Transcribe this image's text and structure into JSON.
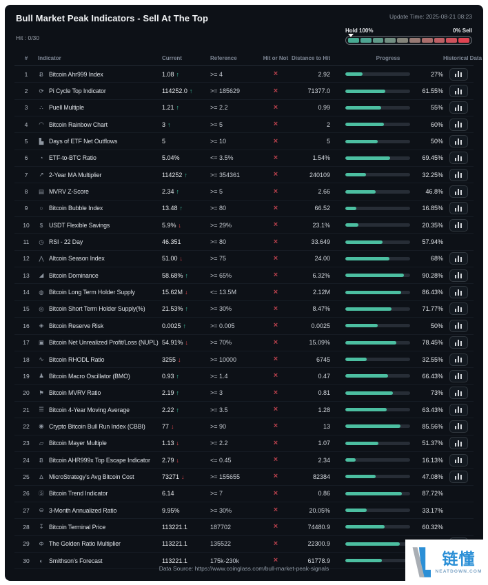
{
  "header": {
    "title": "Bull Market Peak Indicators - Sell At The Top",
    "update_time": "Update Time: 2025-08-21 08:23",
    "hit": "Hit : 0/30",
    "gauge": {
      "left_label": "Hold 100%",
      "right_label": "0% Sell",
      "marker_position_pct": 0,
      "segments": [
        "#48ab93",
        "#4ea492",
        "#609b8a",
        "#728f82",
        "#85857b",
        "#987a74",
        "#ab6e6c",
        "#bd6065",
        "#cf525c",
        "#e14351"
      ]
    }
  },
  "table": {
    "columns": [
      "#",
      "Indicator",
      "Current",
      "Reference",
      "Hit or Not",
      "Distance to Hit",
      "Progress",
      "Historical Data"
    ],
    "hit_mark": "×",
    "history_icon": "bar-chart-icon",
    "rows": [
      {
        "num": "1",
        "icon": "Ƀ",
        "name": "Bitcoin Ahr999 Index",
        "current": "1.08",
        "trend": "up",
        "reference": ">= 4",
        "hit": false,
        "distance": "2.92",
        "progress_pct": 27,
        "progress_label": "27%",
        "has_history": true
      },
      {
        "num": "2",
        "icon": "⟳",
        "name": "Pi Cycle Top Indicator",
        "current": "114252.0",
        "trend": "up",
        "reference": ">= 185629",
        "hit": false,
        "distance": "71377.0",
        "progress_pct": 61.55,
        "progress_label": "61.55%",
        "has_history": true
      },
      {
        "num": "3",
        "icon": "∴",
        "name": "Puell Multiple",
        "current": "1.21",
        "trend": "up",
        "reference": ">= 2.2",
        "hit": false,
        "distance": "0.99",
        "progress_pct": 55,
        "progress_label": "55%",
        "has_history": true
      },
      {
        "num": "4",
        "icon": "◠",
        "name": "Bitcoin Rainbow Chart",
        "current": "3",
        "trend": "up",
        "reference": ">= 5",
        "hit": false,
        "distance": "2",
        "progress_pct": 60,
        "progress_label": "60%",
        "has_history": true
      },
      {
        "num": "5",
        "icon": "▙",
        "name": "Days of ETF Net Outflows",
        "current": "5",
        "trend": "none",
        "reference": ">= 10",
        "hit": false,
        "distance": "5",
        "progress_pct": 50,
        "progress_label": "50%",
        "has_history": true
      },
      {
        "num": "6",
        "icon": "◔",
        "name": "ETF-to-BTC Ratio",
        "current": "5.04%",
        "trend": "none",
        "reference": "<= 3.5%",
        "hit": false,
        "distance": "1.54%",
        "progress_pct": 69.45,
        "progress_label": "69.45%",
        "has_history": true
      },
      {
        "num": "7",
        "icon": "↗",
        "name": "2-Year MA Multiplier",
        "current": "114252",
        "trend": "up",
        "reference": ">= 354361",
        "hit": false,
        "distance": "240109",
        "progress_pct": 32.25,
        "progress_label": "32.25%",
        "has_history": true
      },
      {
        "num": "8",
        "icon": "▤",
        "name": "MVRV Z-Score",
        "current": "2.34",
        "trend": "up",
        "reference": ">= 5",
        "hit": false,
        "distance": "2.66",
        "progress_pct": 46.8,
        "progress_label": "46.8%",
        "has_history": true
      },
      {
        "num": "9",
        "icon": "○",
        "name": "Bitcoin Bubble Index",
        "current": "13.48",
        "trend": "up",
        "reference": ">= 80",
        "hit": false,
        "distance": "66.52",
        "progress_pct": 16.85,
        "progress_label": "16.85%",
        "has_history": true
      },
      {
        "num": "10",
        "icon": "$",
        "name": "USDT Flexible Savings",
        "current": "5.9%",
        "trend": "down",
        "reference": ">= 29%",
        "hit": false,
        "distance": "23.1%",
        "progress_pct": 20.35,
        "progress_label": "20.35%",
        "has_history": true
      },
      {
        "num": "11",
        "icon": "◷",
        "name": "RSI - 22 Day",
        "current": "46.351",
        "trend": "none",
        "reference": ">= 80",
        "hit": false,
        "distance": "33.649",
        "progress_pct": 57.94,
        "progress_label": "57.94%",
        "has_history": false
      },
      {
        "num": "12",
        "icon": "⋀",
        "name": "Altcoin Season Index",
        "current": "51.00",
        "trend": "down",
        "reference": ">= 75",
        "hit": false,
        "distance": "24.00",
        "progress_pct": 68,
        "progress_label": "68%",
        "has_history": true
      },
      {
        "num": "13",
        "icon": "◢",
        "name": "Bitcoin Dominance",
        "current": "58.68%",
        "trend": "up",
        "reference": ">= 65%",
        "hit": false,
        "distance": "6.32%",
        "progress_pct": 90.28,
        "progress_label": "90.28%",
        "has_history": true
      },
      {
        "num": "14",
        "icon": "◍",
        "name": "Bitcoin Long Term Holder Supply",
        "current": "15.62M",
        "trend": "down",
        "reference": "<= 13.5M",
        "hit": false,
        "distance": "2.12M",
        "progress_pct": 86.43,
        "progress_label": "86.43%",
        "has_history": true
      },
      {
        "num": "15",
        "icon": "◎",
        "name": "Bitcoin Short Term Holder Supply(%)",
        "current": "21.53%",
        "trend": "up",
        "reference": ">= 30%",
        "hit": false,
        "distance": "8.47%",
        "progress_pct": 71.77,
        "progress_label": "71.77%",
        "has_history": true
      },
      {
        "num": "16",
        "icon": "◈",
        "name": "Bitcoin Reserve Risk",
        "current": "0.0025",
        "trend": "up",
        "reference": ">= 0.005",
        "hit": false,
        "distance": "0.0025",
        "progress_pct": 50,
        "progress_label": "50%",
        "has_history": true
      },
      {
        "num": "17",
        "icon": "▣",
        "name": "Bitcoin Net Unrealized Profit/Loss (NUPL)",
        "current": "54.91%",
        "trend": "down",
        "reference": ">= 70%",
        "hit": false,
        "distance": "15.09%",
        "progress_pct": 78.45,
        "progress_label": "78.45%",
        "has_history": true
      },
      {
        "num": "18",
        "icon": "∿",
        "name": "Bitcoin RHODL Ratio",
        "current": "3255",
        "trend": "down",
        "reference": ">= 10000",
        "hit": false,
        "distance": "6745",
        "progress_pct": 32.55,
        "progress_label": "32.55%",
        "has_history": true
      },
      {
        "num": "19",
        "icon": "♟",
        "name": "Bitcoin Macro Oscillator (BMO)",
        "current": "0.93",
        "trend": "up",
        "reference": ">= 1.4",
        "hit": false,
        "distance": "0.47",
        "progress_pct": 66.43,
        "progress_label": "66.43%",
        "has_history": true
      },
      {
        "num": "20",
        "icon": "⚑",
        "name": "Bitcoin MVRV Ratio",
        "current": "2.19",
        "trend": "up",
        "reference": ">= 3",
        "hit": false,
        "distance": "0.81",
        "progress_pct": 73,
        "progress_label": "73%",
        "has_history": true
      },
      {
        "num": "21",
        "icon": "☰",
        "name": "Bitcoin 4-Year Moving Average",
        "current": "2.22",
        "trend": "up",
        "reference": ">= 3.5",
        "hit": false,
        "distance": "1.28",
        "progress_pct": 63.43,
        "progress_label": "63.43%",
        "has_history": true
      },
      {
        "num": "22",
        "icon": "◉",
        "name": "Crypto Bitcoin Bull Run Index (CBBI)",
        "current": "77",
        "trend": "down",
        "reference": ">= 90",
        "hit": false,
        "distance": "13",
        "progress_pct": 85.56,
        "progress_label": "85.56%",
        "has_history": true
      },
      {
        "num": "23",
        "icon": "▱",
        "name": "Bitcoin Mayer Multiple",
        "current": "1.13",
        "trend": "down",
        "reference": ">= 2.2",
        "hit": false,
        "distance": "1.07",
        "progress_pct": 51.37,
        "progress_label": "51.37%",
        "has_history": true
      },
      {
        "num": "24",
        "icon": "Ƀ",
        "name": "Bitcoin AHR999x Top Escape Indicator",
        "current": "2.79",
        "trend": "down",
        "reference": "<= 0.45",
        "hit": false,
        "distance": "2.34",
        "progress_pct": 16.13,
        "progress_label": "16.13%",
        "has_history": true
      },
      {
        "num": "25",
        "icon": "∆",
        "name": "MicroStrategy's Avg Bitcoin Cost",
        "current": "73271",
        "trend": "down",
        "reference": ">= 155655",
        "hit": false,
        "distance": "82384",
        "progress_pct": 47.08,
        "progress_label": "47.08%",
        "has_history": true
      },
      {
        "num": "26",
        "icon": "Ⓢ",
        "name": "Bitcoin Trend Indicator",
        "current": "6.14",
        "trend": "none",
        "reference": ">= 7",
        "hit": false,
        "distance": "0.86",
        "progress_pct": 87.72,
        "progress_label": "87.72%",
        "has_history": false
      },
      {
        "num": "27",
        "icon": "⊖",
        "name": "3-Month Annualized Ratio",
        "current": "9.95%",
        "trend": "none",
        "reference": ">= 30%",
        "hit": false,
        "distance": "20.05%",
        "progress_pct": 33.17,
        "progress_label": "33.17%",
        "has_history": false
      },
      {
        "num": "28",
        "icon": "↧",
        "name": "Bitcoin Terminal Price",
        "current": "113221.1",
        "trend": "none",
        "reference": "187702",
        "hit": false,
        "distance": "74480.9",
        "progress_pct": 60.32,
        "progress_label": "60.32%",
        "has_history": false
      },
      {
        "num": "29",
        "icon": "Φ",
        "name": "The Golden Ratio Multiplier",
        "current": "113221.1",
        "trend": "none",
        "reference": "135522",
        "hit": false,
        "distance": "22300.9",
        "progress_pct": 83.55,
        "progress_label": "83.55%",
        "has_history": true
      },
      {
        "num": "30",
        "icon": "◐",
        "name": "Smithson's Forecast",
        "current": "113221.1",
        "trend": "none",
        "reference": "175k-230k",
        "hit": false,
        "distance": "61778.9",
        "progress_pct": 56,
        "progress_label": "",
        "has_history": false
      }
    ]
  },
  "footer": {
    "source": "Data Source: https://www.coinglass.com/bull-market-peak-signals"
  },
  "watermark": {
    "brand": "链懂",
    "domain": "NEATDOWN.COM"
  },
  "colors": {
    "accent_teal": "#4cbfa1",
    "up_green": "#3ebf9e",
    "down_red": "#e5484d",
    "miss_red": "#b8414d",
    "card_bg": "#0d1117",
    "brand_blue": "#2b8fd6"
  }
}
